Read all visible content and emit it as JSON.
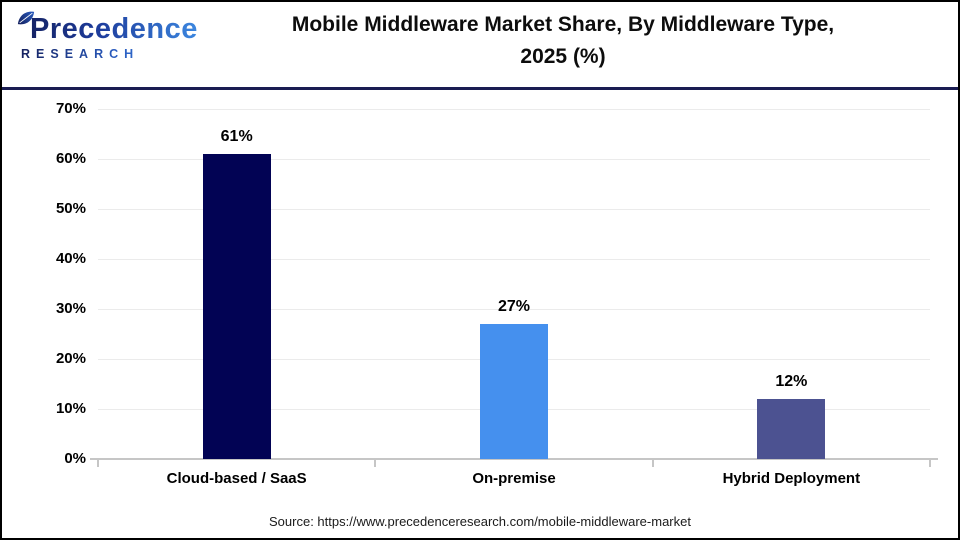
{
  "header": {
    "logo": {
      "name_line": "Precedence",
      "sub_line": "RESEARCH"
    },
    "title_line1": "Mobile Middleware Market Share, By Middleware Type,",
    "title_line2": "2025 (%)"
  },
  "chart_data": {
    "type": "bar",
    "title": "Mobile Middleware Market Share, By Middleware Type, 2025 (%)",
    "categories": [
      "Cloud-based / SaaS",
      "On-premise",
      "Hybrid Deployment"
    ],
    "values": [
      61,
      27,
      12
    ],
    "value_labels": [
      "61%",
      "27%",
      "12%"
    ],
    "bar_colors": [
      "#020354",
      "#4590ee",
      "#4c5291"
    ],
    "ylim": [
      0,
      70
    ],
    "ytick_values": [
      0,
      10,
      20,
      30,
      40,
      50,
      60,
      70
    ],
    "ytick_labels": [
      "0%",
      "10%",
      "20%",
      "30%",
      "40%",
      "50%",
      "60%",
      "70%"
    ],
    "grid": "horizontal",
    "legend_position": "none",
    "xlabel": "",
    "ylabel": ""
  },
  "footer": {
    "source": "Source: https://www.precedenceresearch.com/mobile-middleware-market"
  },
  "colors": {
    "header_rule": "#1a1c52",
    "grid_line": "#ebebeb",
    "axis_line": "#c6c6c6",
    "text": "#0d0d0d",
    "logo_gradient_start": "#141f5c",
    "logo_gradient_end": "#3c87e0",
    "page_border": "#000000"
  }
}
